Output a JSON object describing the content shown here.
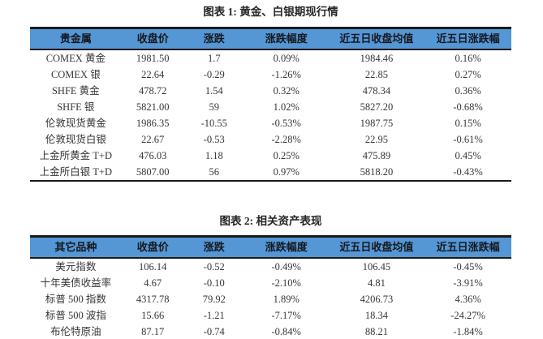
{
  "colors": {
    "header_bg": "#5596d5",
    "rule_line": "#1a1a1a",
    "header_text": "#15181d",
    "body_text": "#363636",
    "page_bg": "#ffffff"
  },
  "chart_data": [
    {
      "type": "table",
      "title": "图表 1: 黄金、白银期现行情",
      "columns": [
        "贵金属",
        "收盘价",
        "涨跌",
        "涨跌幅度",
        "近五日收盘均值",
        "近五日涨跌幅"
      ],
      "rows": [
        [
          "COMEX 黄金",
          "1981.50",
          "1.7",
          "0.09%",
          "1984.46",
          "0.16%"
        ],
        [
          "COMEX 银",
          "22.64",
          "-0.29",
          "-1.26%",
          "22.85",
          "0.27%"
        ],
        [
          "SHFE 黄金",
          "478.72",
          "1.54",
          "0.32%",
          "478.34",
          "0.36%"
        ],
        [
          "SHFE 银",
          "5821.00",
          "59",
          "1.02%",
          "5827.20",
          "-0.68%"
        ],
        [
          "伦敦现货黄金",
          "1986.35",
          "-10.55",
          "-0.53%",
          "1987.75",
          "0.15%"
        ],
        [
          "伦敦现货白银",
          "22.67",
          "-0.53",
          "-2.28%",
          "22.95",
          "-0.61%"
        ],
        [
          "上金所黄金 T+D",
          "476.03",
          "1.18",
          "0.25%",
          "475.89",
          "0.45%"
        ],
        [
          "上金所白银 T+D",
          "5807.00",
          "56",
          "0.97%",
          "5818.20",
          "-0.43%"
        ]
      ]
    },
    {
      "type": "table",
      "title": "图表 2: 相关资产表现",
      "columns": [
        "其它品种",
        "收盘价",
        "涨跌",
        "涨跌幅度",
        "近五日收盘均值",
        "近五日涨跌幅"
      ],
      "rows": [
        [
          "美元指数",
          "106.14",
          "-0.52",
          "-0.49%",
          "106.45",
          "-0.45%"
        ],
        [
          "十年美债收益率",
          "4.67",
          "-0.10",
          "-2.10%",
          "4.81",
          "-3.91%"
        ],
        [
          "标普 500 指数",
          "4317.78",
          "79.92",
          "1.89%",
          "4206.73",
          "4.36%"
        ],
        [
          "标普 500 波指",
          "15.66",
          "-1.21",
          "-7.17%",
          "18.34",
          "-24.27%"
        ],
        [
          "布伦特原油",
          "87.17",
          "-0.74",
          "-0.84%",
          "88.21",
          "-1.84%"
        ]
      ]
    }
  ]
}
